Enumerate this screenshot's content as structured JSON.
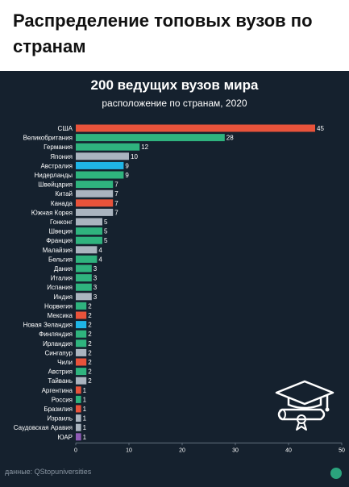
{
  "header": {
    "title": "Распределение топовых вузов по странам"
  },
  "source": "данные: QStopuniversities",
  "icons": {
    "graduation": "graduation-cap-diploma-icon",
    "brand": "brand-logo-icon"
  },
  "colors": {
    "panel_bg": "#15212e",
    "red": "#e8533b",
    "green": "#2fb37e",
    "gray": "#aab4bf",
    "blue": "#1fb5e6",
    "purple": "#8e5bb5",
    "text": "#ffffff"
  },
  "chart_data": {
    "type": "bar",
    "orientation": "horizontal",
    "title": "200 ведущих вузов мира",
    "subtitle": "расположение по странам, 2020",
    "xlim": [
      0,
      50
    ],
    "xticks": [
      0,
      10,
      20,
      30,
      40,
      50
    ],
    "grid": false,
    "categories": [
      "США",
      "Великобритания",
      "Германия",
      "Япония",
      "Австралия",
      "Нидерланды",
      "Швейцария",
      "Китай",
      "Канада",
      "Южная Корея",
      "Гонконг",
      "Швеция",
      "Франция",
      "Малайзия",
      "Бельгия",
      "Дания",
      "Италия",
      "Испания",
      "Индия",
      "Норвегия",
      "Мексика",
      "Новая Зеландия",
      "Финляндия",
      "Ирландия",
      "Сингапур",
      "Чили",
      "Австрия",
      "Тайвань",
      "Аргентина",
      "Россия",
      "Бразилия",
      "Израиль",
      "Саудовская Аравия",
      "ЮАР"
    ],
    "values": [
      45,
      28,
      12,
      10,
      9,
      9,
      7,
      7,
      7,
      7,
      5,
      5,
      5,
      4,
      4,
      3,
      3,
      3,
      3,
      2,
      2,
      2,
      2,
      2,
      2,
      2,
      2,
      2,
      1,
      1,
      1,
      1,
      1,
      1
    ],
    "bar_colors": [
      "red",
      "green",
      "green",
      "gray",
      "blue",
      "green",
      "green",
      "gray",
      "red",
      "gray",
      "gray",
      "green",
      "green",
      "gray",
      "green",
      "green",
      "green",
      "green",
      "gray",
      "green",
      "red",
      "blue",
      "green",
      "green",
      "gray",
      "red",
      "green",
      "gray",
      "red",
      "green",
      "red",
      "gray",
      "gray",
      "purple"
    ]
  }
}
